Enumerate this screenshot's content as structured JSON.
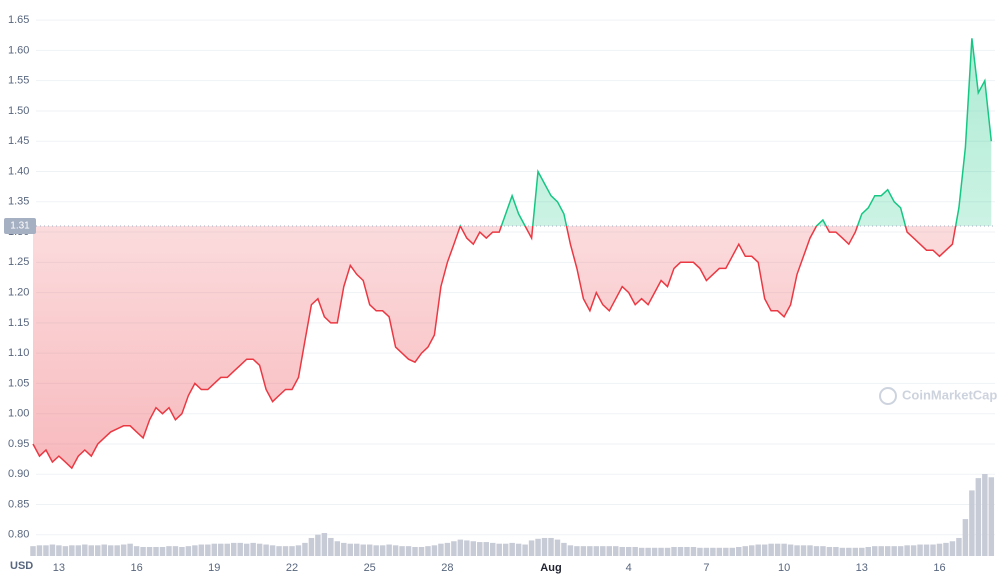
{
  "chart_data": {
    "type": "line",
    "axis_label": "USD",
    "watermark": "CoinMarketCap",
    "baseline": 1.31,
    "colors": {
      "up": "#16c784",
      "down": "#ea3943",
      "volume": "#c7cbd6"
    },
    "grid": true,
    "ylim": [
      0.765,
      1.675
    ],
    "yticks": [
      {
        "value": 0.8,
        "label": "0.80"
      },
      0.85,
      {
        "value": 0.9,
        "label": "0.90"
      },
      0.95,
      {
        "value": 1.0,
        "label": "1.00"
      },
      1.05,
      {
        "value": 1.1,
        "label": "1.10"
      },
      1.15,
      {
        "value": 1.2,
        "label": "1.20"
      },
      1.25,
      {
        "value": 1.3,
        "label": "1.30"
      },
      1.35,
      {
        "value": 1.4,
        "label": "1.40"
      },
      1.45,
      {
        "value": 1.5,
        "label": "1.50"
      },
      1.55,
      {
        "value": 1.6,
        "label": "1.60"
      },
      1.65
    ],
    "categories": [
      null,
      null,
      null,
      null,
      "13",
      null,
      null,
      null,
      null,
      null,
      null,
      null,
      null,
      null,
      null,
      null,
      "16",
      null,
      null,
      null,
      null,
      null,
      null,
      null,
      null,
      null,
      null,
      null,
      "19",
      null,
      null,
      null,
      null,
      null,
      null,
      null,
      null,
      null,
      null,
      null,
      "22",
      null,
      null,
      null,
      null,
      null,
      null,
      null,
      null,
      null,
      null,
      null,
      "25",
      null,
      null,
      null,
      null,
      null,
      null,
      null,
      null,
      null,
      null,
      null,
      "28",
      null,
      null,
      null,
      null,
      null,
      null,
      null,
      null,
      null,
      null,
      null,
      null,
      null,
      null,
      null,
      "Aug",
      null,
      null,
      null,
      null,
      null,
      null,
      null,
      null,
      null,
      null,
      null,
      "4",
      null,
      null,
      null,
      null,
      null,
      null,
      null,
      null,
      null,
      null,
      null,
      "7",
      null,
      null,
      null,
      null,
      null,
      null,
      null,
      null,
      null,
      null,
      null,
      "10",
      null,
      null,
      null,
      null,
      null,
      null,
      null,
      null,
      null,
      null,
      null,
      "13",
      null,
      null,
      null,
      null,
      null,
      null,
      null,
      null,
      null,
      null,
      null,
      "16",
      null,
      null,
      null,
      null,
      null,
      null,
      null,
      null
    ],
    "values": [
      0.95,
      0.93,
      0.94,
      0.92,
      0.93,
      0.92,
      0.91,
      0.93,
      0.94,
      0.93,
      0.95,
      0.96,
      0.97,
      0.975,
      0.98,
      0.98,
      0.97,
      0.96,
      0.99,
      1.01,
      1.0,
      1.01,
      0.99,
      1.0,
      1.03,
      1.05,
      1.04,
      1.04,
      1.05,
      1.06,
      1.06,
      1.07,
      1.08,
      1.09,
      1.09,
      1.08,
      1.04,
      1.02,
      1.03,
      1.04,
      1.04,
      1.06,
      1.12,
      1.18,
      1.19,
      1.16,
      1.15,
      1.15,
      1.21,
      1.245,
      1.23,
      1.22,
      1.18,
      1.17,
      1.17,
      1.16,
      1.11,
      1.1,
      1.09,
      1.085,
      1.1,
      1.11,
      1.13,
      1.21,
      1.25,
      1.28,
      1.31,
      1.29,
      1.28,
      1.3,
      1.29,
      1.3,
      1.3,
      1.33,
      1.36,
      1.33,
      1.31,
      1.29,
      1.4,
      1.38,
      1.36,
      1.35,
      1.33,
      1.28,
      1.24,
      1.19,
      1.17,
      1.2,
      1.18,
      1.17,
      1.19,
      1.21,
      1.2,
      1.18,
      1.19,
      1.18,
      1.2,
      1.22,
      1.21,
      1.24,
      1.25,
      1.25,
      1.25,
      1.24,
      1.22,
      1.23,
      1.24,
      1.24,
      1.26,
      1.28,
      1.26,
      1.26,
      1.25,
      1.19,
      1.17,
      1.17,
      1.16,
      1.18,
      1.23,
      1.26,
      1.29,
      1.31,
      1.32,
      1.3,
      1.3,
      1.29,
      1.28,
      1.3,
      1.33,
      1.34,
      1.36,
      1.36,
      1.37,
      1.35,
      1.34,
      1.3,
      1.29,
      1.28,
      1.27,
      1.27,
      1.26,
      1.27,
      1.28,
      1.34,
      1.44,
      1.62,
      1.53,
      1.55,
      1.45
    ],
    "volume": [
      12,
      13,
      13,
      14,
      13,
      12,
      13,
      13,
      14,
      13,
      13,
      14,
      13,
      13,
      14,
      15,
      12,
      11,
      11,
      11,
      11,
      12,
      12,
      11,
      12,
      13,
      14,
      14,
      15,
      15,
      15,
      16,
      16,
      15,
      16,
      15,
      14,
      13,
      12,
      12,
      12,
      13,
      16,
      22,
      26,
      28,
      22,
      18,
      16,
      15,
      15,
      14,
      14,
      13,
      13,
      14,
      13,
      12,
      12,
      11,
      11,
      12,
      13,
      15,
      16,
      18,
      20,
      19,
      18,
      17,
      17,
      16,
      15,
      15,
      16,
      15,
      14,
      19,
      21,
      22,
      22,
      20,
      16,
      13,
      12,
      12,
      12,
      12,
      12,
      12,
      12,
      11,
      11,
      11,
      10,
      10,
      10,
      10,
      10,
      11,
      11,
      11,
      11,
      10,
      10,
      10,
      10,
      10,
      10,
      11,
      12,
      13,
      14,
      14,
      15,
      15,
      15,
      14,
      13,
      13,
      13,
      12,
      12,
      11,
      11,
      10,
      10,
      10,
      10,
      11,
      12,
      12,
      12,
      12,
      12,
      13,
      13,
      14,
      14,
      14,
      15,
      16,
      18,
      22,
      45,
      80,
      95,
      100,
      96
    ]
  }
}
